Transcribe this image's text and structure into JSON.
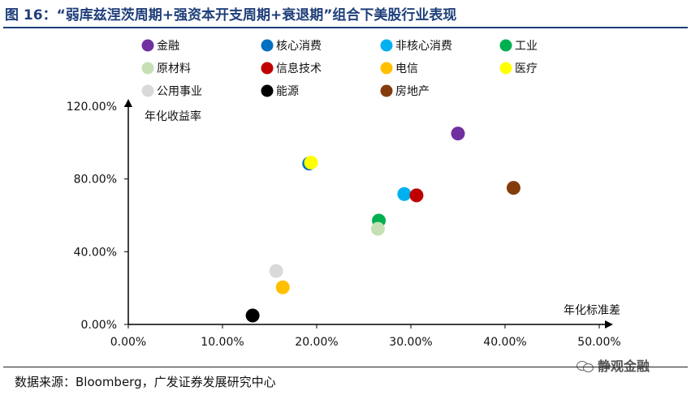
{
  "title": "图 16：“弱库兹涅茨周期+强资本开支周期+衰退期”组合下美股行业表现",
  "source": "数据来源：Bloomberg，广发证券发展研究中心",
  "watermark": "静观金融",
  "chart_data": {
    "type": "scatter",
    "title": "",
    "xlabel": "年化标准差",
    "ylabel": "年化收益率",
    "xlim": [
      0,
      0.5
    ],
    "ylim": [
      0,
      1.2
    ],
    "x_ticks": [
      0,
      0.1,
      0.2,
      0.3,
      0.4,
      0.5
    ],
    "x_tick_labels": [
      "0.00%",
      "10.00%",
      "20.00%",
      "30.00%",
      "40.00%",
      "50.00%"
    ],
    "y_ticks": [
      0,
      0.4,
      0.8,
      1.2
    ],
    "y_tick_labels": [
      "0.00%",
      "40.00%",
      "80.00%",
      "120.00%"
    ],
    "grid": false,
    "legend_position": "top",
    "series": [
      {
        "name": "金融",
        "color": "#7030a0",
        "x": [
          0.35
        ],
        "y": [
          1.05
        ]
      },
      {
        "name": "核心消费",
        "color": "#0070c0",
        "x": [
          0.192
        ],
        "y": [
          0.885
        ]
      },
      {
        "name": "非核心消费",
        "color": "#00b0f0",
        "x": [
          0.293
        ],
        "y": [
          0.717
        ]
      },
      {
        "name": "工业",
        "color": "#00b050",
        "x": [
          0.266
        ],
        "y": [
          0.571
        ]
      },
      {
        "name": "原材料",
        "color": "#c6e0b4",
        "x": [
          0.265
        ],
        "y": [
          0.526
        ]
      },
      {
        "name": "信息技术",
        "color": "#c00000",
        "x": [
          0.306
        ],
        "y": [
          0.71
        ]
      },
      {
        "name": "电信",
        "color": "#ffc000",
        "x": [
          0.164
        ],
        "y": [
          0.204
        ]
      },
      {
        "name": "医疗",
        "color": "#ffff00",
        "x": [
          0.194
        ],
        "y": [
          0.89
        ]
      },
      {
        "name": "公用事业",
        "color": "#d9d9d9",
        "x": [
          0.157
        ],
        "y": [
          0.294
        ]
      },
      {
        "name": "能源",
        "color": "#000000",
        "x": [
          0.132
        ],
        "y": [
          0.049
        ]
      },
      {
        "name": "房地产",
        "color": "#843c0c",
        "x": [
          0.409
        ],
        "y": [
          0.751
        ]
      }
    ]
  }
}
